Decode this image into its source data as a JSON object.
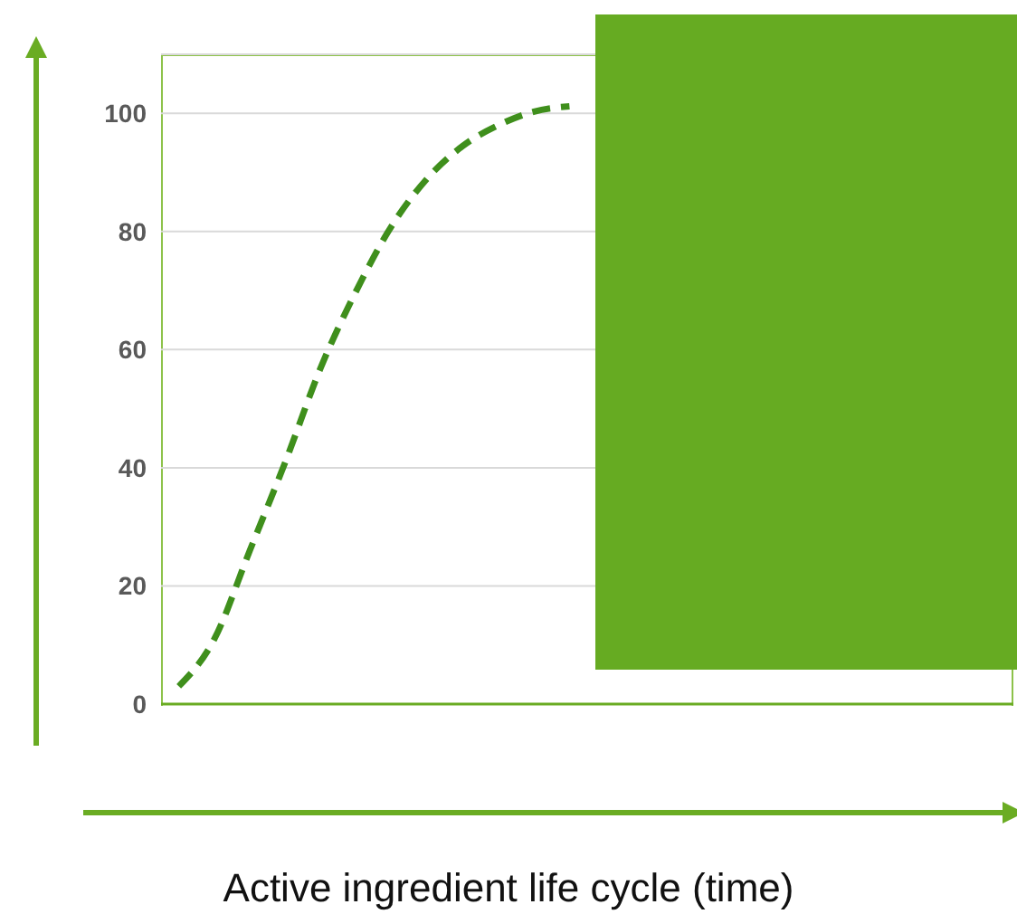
{
  "chart_data": {
    "type": "line",
    "xlabel": "Active ingredient life cycle (time)",
    "categories": [
      null,
      null,
      null,
      null,
      null,
      null,
      null,
      null,
      null,
      null,
      null,
      null,
      null,
      null,
      null,
      null,
      null,
      null,
      null,
      null,
      null,
      null,
      null,
      null
    ],
    "series": [
      {
        "color": "#3f8f1c",
        "values": [
          3,
          11,
          26,
          41,
          57,
          70,
          81,
          89,
          94.5,
          98,
          100.3,
          101.2,
          null,
          null,
          null,
          null,
          null,
          null,
          null,
          null,
          null,
          null,
          null,
          null
        ]
      }
    ],
    "ylim": [
      0,
      110
    ],
    "yticks": [
      0,
      20,
      40,
      60,
      80,
      100
    ],
    "grid": "y",
    "line_style": "dashed",
    "marker": "none"
  }
}
